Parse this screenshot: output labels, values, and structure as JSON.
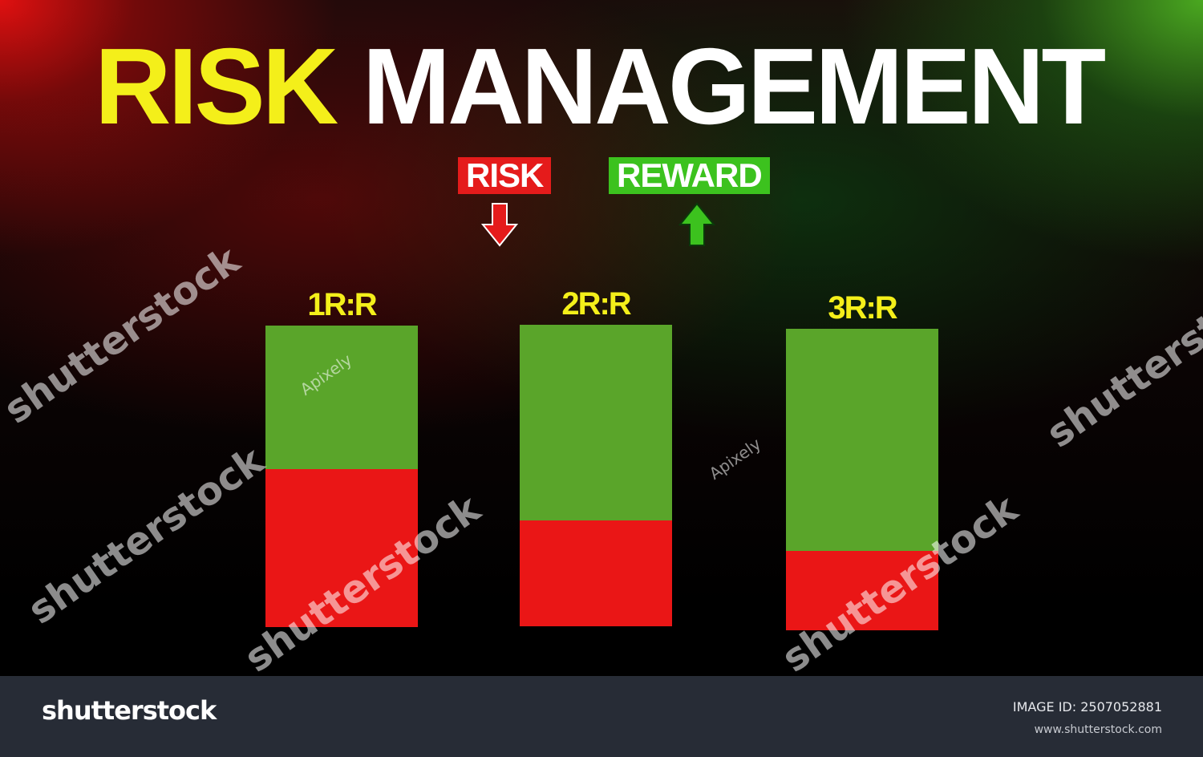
{
  "title": {
    "part1": "RISK",
    "part2": "MANAGEMENT"
  },
  "legend": {
    "risk": "RISK",
    "reward": "REWARD",
    "risk_color": "#ea1616",
    "reward_color": "#3cc21e"
  },
  "chart_data": {
    "type": "bar",
    "stacked": true,
    "categories": [
      "1R:R",
      "2R:R",
      "3R:R"
    ],
    "series": [
      {
        "name": "RISK",
        "values": [
          1,
          1,
          1
        ],
        "color": "#ea1616"
      },
      {
        "name": "REWARD",
        "values": [
          1,
          2,
          3
        ],
        "color": "#5aa52a"
      }
    ]
  },
  "watermark": {
    "text": "shutterstock",
    "author": "Apixely"
  },
  "footer": {
    "logo": "shutterstock",
    "image_id": "IMAGE ID: 2507052881",
    "url": "www.shutterstock.com"
  }
}
